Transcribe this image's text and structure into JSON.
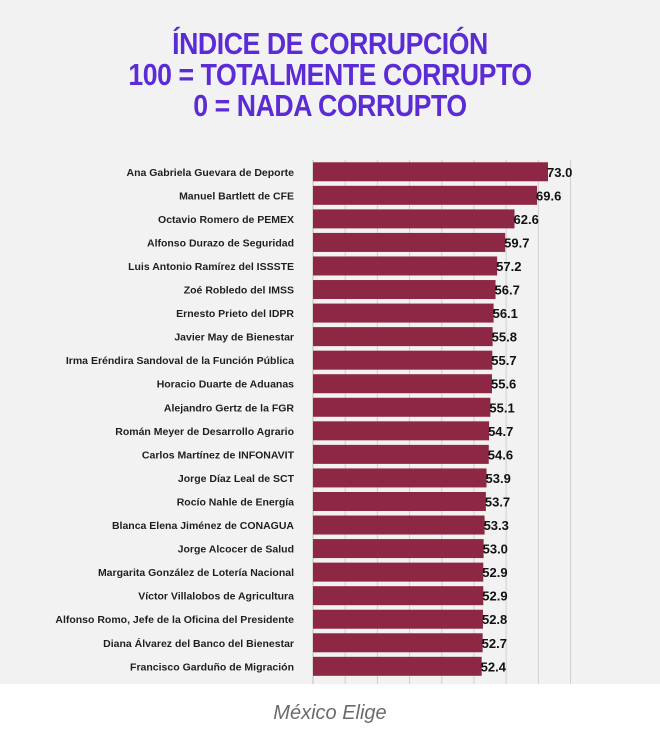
{
  "title_lines": [
    "ÍNDICE DE CORRUPCIÓN",
    "100 = TOTALMENTE CORRUPTO",
    "0 = NADA CORRUPTO"
  ],
  "caption": "México Elige",
  "colors": {
    "title": "#5b2bd6",
    "bar": "#8e2744",
    "background": "#f2f2f2",
    "grid": "#cfcfcf",
    "caption": "#6b6b6b"
  },
  "chart_data": {
    "type": "bar",
    "orientation": "horizontal",
    "title": "ÍNDICE DE CORRUPCIÓN 100 = TOTALMENTE CORRUPTO 0 = NADA CORRUPTO",
    "xlabel": "",
    "ylabel": "",
    "grid": true,
    "categories": [
      "Ana Gabriela Guevara de Deporte",
      "Manuel Bartlett de CFE",
      "Octavio Romero de PEMEX",
      "Alfonso Durazo de Seguridad",
      "Luis Antonio Ramírez del ISSSTE",
      "Zoé Robledo del IMSS",
      "Ernesto Prieto del IDPR",
      "Javier May de Bienestar",
      "Irma Eréndira Sandoval de la Función Pública",
      "Horacio Duarte de Aduanas",
      "Alejandro Gertz de la FGR",
      "Román Meyer de Desarrollo Agrario",
      "Carlos Martínez de INFONAVIT",
      "Jorge Díaz Leal de SCT",
      "Rocío Nahle de Energía",
      "Blanca Elena Jiménez de CONAGUA",
      "Jorge Alcocer de Salud",
      "Margarita González de Lotería Nacional",
      "Víctor Villalobos de Agricultura",
      "Alfonso Romo, Jefe de la Oficina del Presidente",
      "Diana Álvarez del Banco del Bienestar",
      "Francisco Garduño de Migración"
    ],
    "values": [
      73.0,
      69.6,
      62.6,
      59.7,
      57.2,
      56.7,
      56.1,
      55.8,
      55.7,
      55.6,
      55.1,
      54.7,
      54.6,
      53.9,
      53.7,
      53.3,
      53.0,
      52.9,
      52.9,
      52.8,
      52.7,
      52.4
    ],
    "value_labels": [
      "73.0",
      "69.6",
      "62.6",
      "59.7",
      "57.2",
      "56.7",
      "56.1",
      "55.8",
      "55.7",
      "55.6",
      "55.1",
      "54.7",
      "54.6",
      "53.9",
      "53.7",
      "53.3",
      "53.0",
      "52.9",
      "52.9",
      "52.8",
      "52.7",
      "52.4"
    ]
  }
}
